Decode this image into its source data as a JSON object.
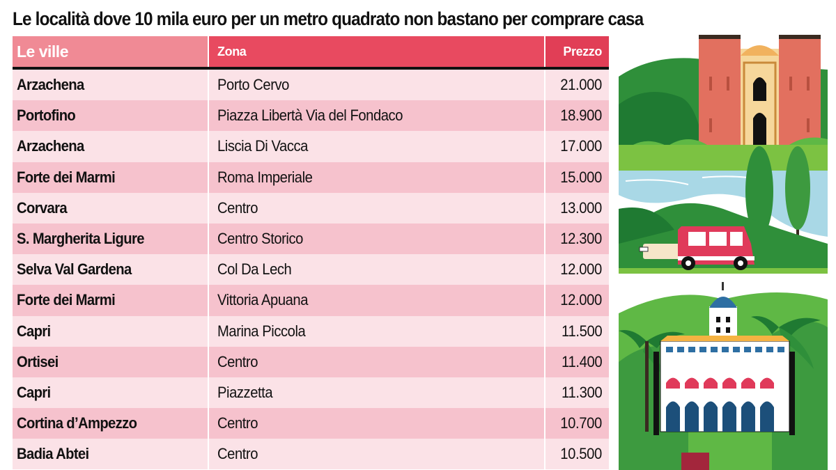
{
  "title": "Le località dove 10 mila euro per un metro quadrato non bastano per comprare casa",
  "header": {
    "col1": "Le ville",
    "col2": "Zona",
    "col3": "Prezzo"
  },
  "rows": [
    {
      "villa": "Arzachena",
      "zona": "Porto Cervo",
      "prezzo": "21.000"
    },
    {
      "villa": "Portofino",
      "zona": "Piazza Libertà Via del Fondaco",
      "prezzo": "18.900"
    },
    {
      "villa": "Arzachena",
      "zona": "Liscia Di Vacca",
      "prezzo": "17.000"
    },
    {
      "villa": "Forte dei Marmi",
      "zona": "Roma Imperiale",
      "prezzo": "15.000"
    },
    {
      "villa": "Corvara",
      "zona": "Centro",
      "prezzo": "13.000"
    },
    {
      "villa": "S. Margherita Ligure",
      "zona": "Centro Storico",
      "prezzo": "12.300"
    },
    {
      "villa": "Selva Val Gardena",
      "zona": "Col Da Lech",
      "prezzo": "12.000"
    },
    {
      "villa": "Forte dei Marmi",
      "zona": "Vittoria Apuana",
      "prezzo": "12.000"
    },
    {
      "villa": "Capri",
      "zona": "Marina Piccola",
      "prezzo": "11.500"
    },
    {
      "villa": "Ortisei",
      "zona": "Centro",
      "prezzo": "11.400"
    },
    {
      "villa": "Capri",
      "zona": "Piazzetta",
      "prezzo": "11.300"
    },
    {
      "villa": "Cortina d’Ampezzo",
      "zona": "Centro",
      "prezzo": "10.700"
    },
    {
      "villa": "Badia Abtei",
      "zona": "Centro",
      "prezzo": "10.500"
    }
  ],
  "colors": {
    "header_light": "#f08a95",
    "header_dark": "#e13e56",
    "row_light": "#fbe2e7",
    "row_dark": "#f6c2cd",
    "green_dark": "#2e7d32",
    "green_light": "#7cc242",
    "castle_red": "#e2705f",
    "water_blue": "#a9d8e6"
  },
  "illustration": {
    "items": [
      "castle",
      "cypress-trees",
      "river",
      "hills",
      "car",
      "palm-trees",
      "villa-building"
    ]
  }
}
